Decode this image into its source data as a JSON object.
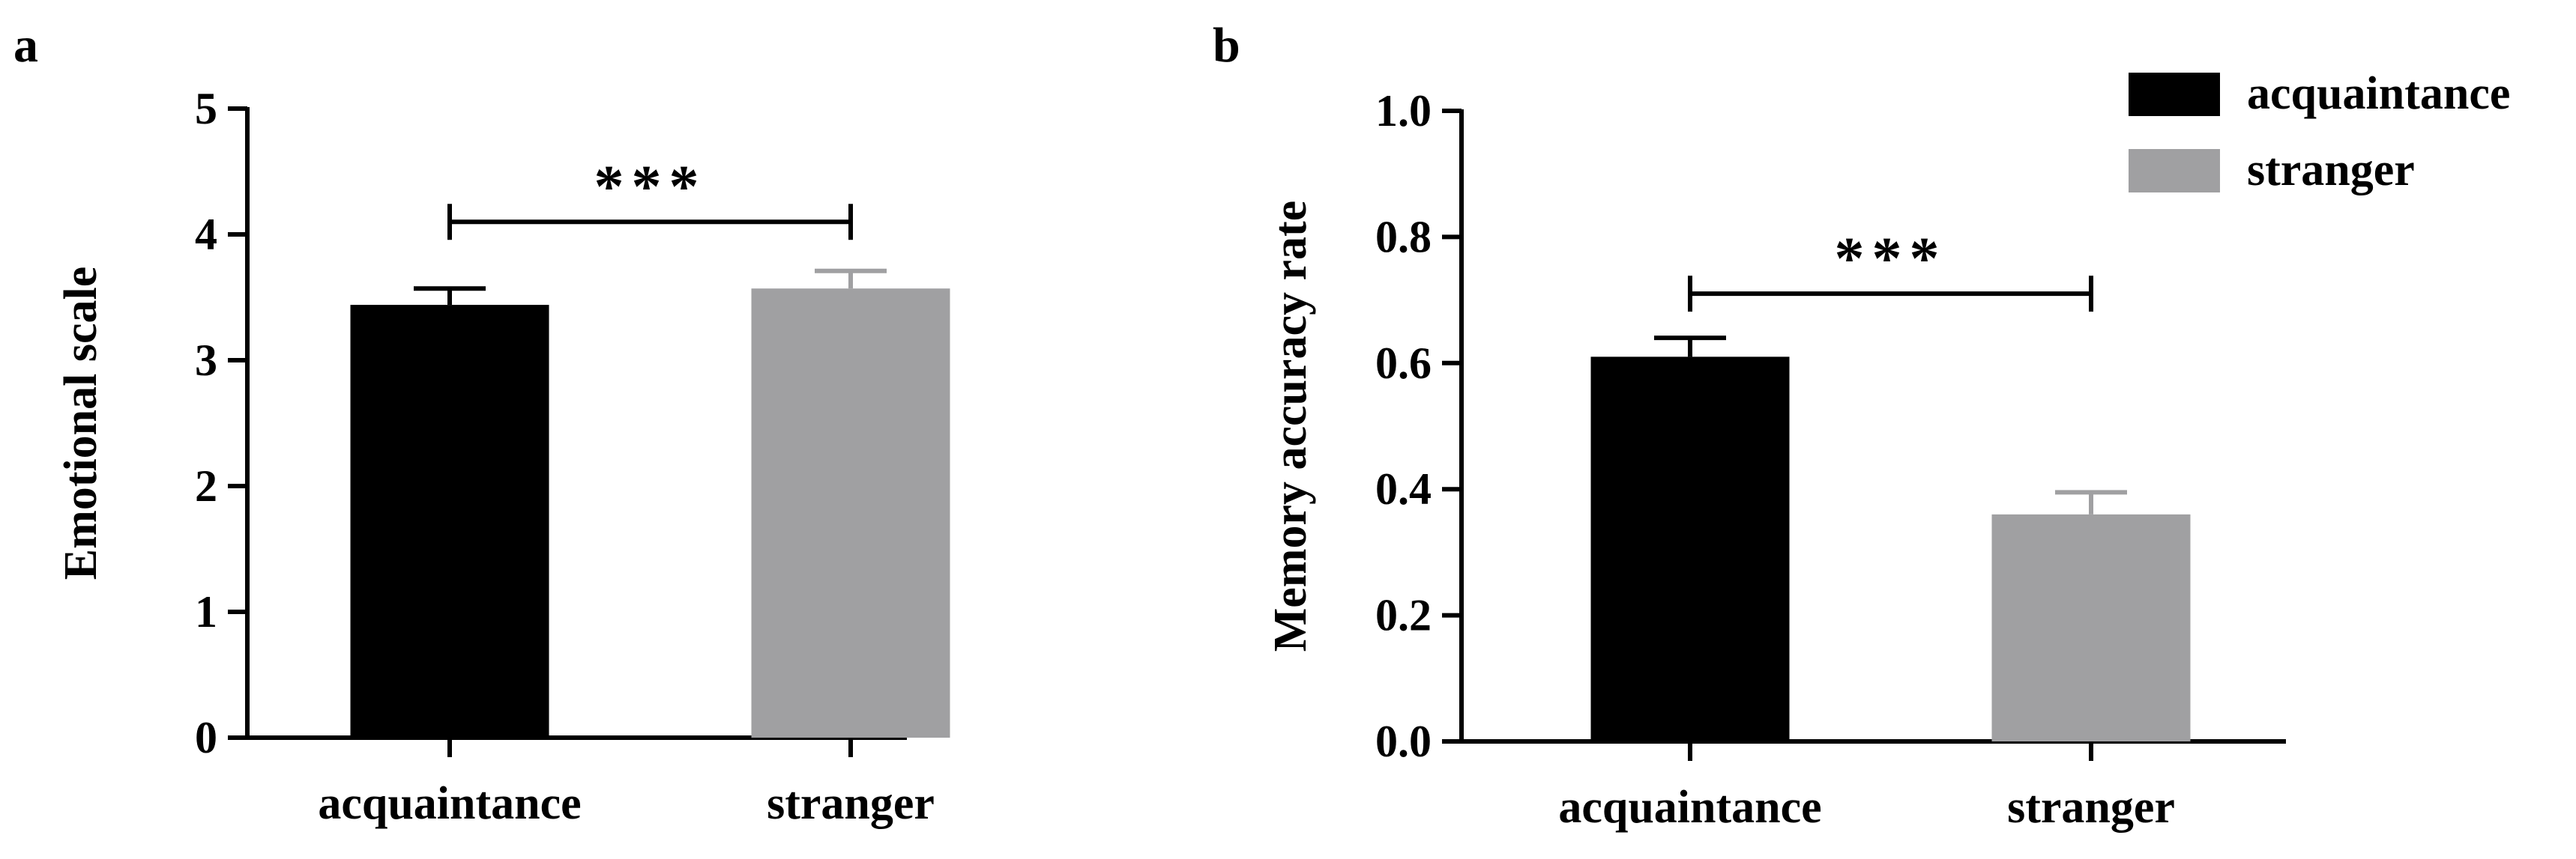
{
  "colors": {
    "acquaintance": "#000000",
    "stranger": "#a0a0a2",
    "axis": "#000000"
  },
  "legend": {
    "placement": "top-right",
    "items": [
      {
        "label": "acquaintance",
        "color": "#000000"
      },
      {
        "label": "stranger",
        "color": "#a0a0a2"
      }
    ]
  },
  "chart_data": [
    {
      "panel_label": "a",
      "type": "bar",
      "categories": [
        "acquaintance",
        "stranger"
      ],
      "values": [
        3.44,
        3.57
      ],
      "errors": [
        0.13,
        0.14
      ],
      "xlabel": "",
      "ylabel": "Emotional scale",
      "ylim": [
        0,
        5
      ],
      "yticks": [
        "0",
        "1",
        "2",
        "3",
        "4",
        "5"
      ],
      "significance": {
        "label": "***",
        "between": [
          0,
          1
        ],
        "y": 4.1
      },
      "grid": false
    },
    {
      "panel_label": "b",
      "type": "bar",
      "categories": [
        "acquaintance",
        "stranger"
      ],
      "values": [
        0.61,
        0.36
      ],
      "errors": [
        0.03,
        0.035
      ],
      "xlabel": "",
      "ylabel": "Memory accuracy rate",
      "ylim": [
        0,
        1.0
      ],
      "yticks": [
        "0.0",
        "0.2",
        "0.4",
        "0.6",
        "0.8",
        "1.0"
      ],
      "significance": {
        "label": "***",
        "between": [
          0,
          1
        ],
        "y": 0.71
      },
      "grid": false
    }
  ]
}
